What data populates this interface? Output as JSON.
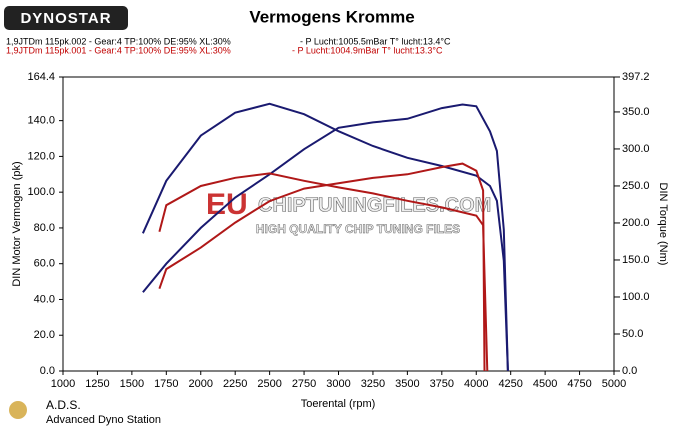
{
  "logo": "DYNOSTAR",
  "footer": {
    "name": "A.D.S.",
    "subtitle": "Advanced Dyno Station"
  },
  "watermark": {
    "brand": "EU",
    "site": "CHIPTUNINGFILES.COM",
    "tagline": "HIGH QUALITY CHIP TUNING FILES"
  },
  "runs": [
    {
      "label": "1,9JTDm 115pk.002 - Gear:4 TP:100% DE:95% XL:30%",
      "conditions": "- P Lucht:1005.5mBar T° lucht:13.4°C",
      "color": "#000000"
    },
    {
      "label": "1,9JTDm 115pk.001 - Gear:4 TP:100% DE:95% XL:30%",
      "conditions": "- P Lucht:1004.9mBar T° lucht:13.3°C",
      "color": "#c00000"
    }
  ],
  "chart_data": {
    "type": "line",
    "title": "Vermogens Kromme",
    "x_label": "Toerental (rpm)",
    "y_label": "DIN Motor Vermogen (pk)",
    "y2_label": "DIN Torque (Nm)",
    "xlim": [
      1000,
      5000
    ],
    "xticks": [
      1000,
      1250,
      1500,
      1750,
      2000,
      2250,
      2500,
      2750,
      3000,
      3250,
      3500,
      3750,
      4000,
      4250,
      4500,
      4750,
      5000
    ],
    "ylim": [
      0,
      164.4
    ],
    "yticks": [
      {
        "value": 0,
        "label": "0.0"
      },
      {
        "value": 20,
        "label": "20.0"
      },
      {
        "value": 40,
        "label": "40.0"
      },
      {
        "value": 60,
        "label": "60.0"
      },
      {
        "value": 80,
        "label": "80.0"
      },
      {
        "value": 100,
        "label": "100.0"
      },
      {
        "value": 120,
        "label": "120.0"
      },
      {
        "value": 140,
        "label": "140.0"
      },
      164.4
    ],
    "y2lim": [
      0,
      397.2
    ],
    "y2ticks": [
      {
        "value": 0,
        "label": "0.0"
      },
      {
        "value": 50,
        "label": "50.0"
      },
      {
        "value": 100,
        "label": "100.0"
      },
      {
        "value": 150,
        "label": "150.0"
      },
      {
        "value": 200,
        "label": "200.0"
      },
      {
        "value": 250,
        "label": "250.0"
      },
      {
        "value": 300,
        "label": "300.0"
      },
      {
        "value": 350,
        "label": "350.0"
      },
      397.2
    ],
    "series": [
      {
        "color": "#1a1a70",
        "x": [
          1580,
          1750,
          2000,
          2250,
          2500,
          2750,
          3000,
          3250,
          3500,
          3750,
          3900,
          4000,
          4100,
          4150,
          4200,
          4230
        ],
        "values": [
          44,
          60,
          80,
          97,
          110,
          124,
          136,
          139,
          141,
          147,
          149,
          148,
          134,
          123,
          79,
          0
        ]
      },
      {
        "color": "#1a1a70",
        "axis": "y2",
        "x": [
          1580,
          1750,
          2000,
          2250,
          2500,
          2750,
          3000,
          3250,
          3500,
          3750,
          4000,
          4100,
          4150,
          4200,
          4230
        ],
        "values": [
          186,
          257,
          318,
          349,
          361,
          347,
          324,
          304,
          288,
          277,
          264,
          250,
          230,
          149,
          0
        ]
      },
      {
        "color": "#b01818",
        "x": [
          1700,
          1750,
          2000,
          2250,
          2500,
          2750,
          3000,
          3250,
          3500,
          3750,
          3900,
          4000,
          4050,
          4060
        ],
        "values": [
          46,
          57,
          69,
          83,
          95,
          102,
          105,
          108,
          110,
          114,
          116,
          112,
          101,
          0
        ]
      },
      {
        "color": "#b01818",
        "axis": "y2",
        "x": [
          1700,
          1750,
          2000,
          2250,
          2500,
          2750,
          3000,
          3250,
          3500,
          3750,
          4000,
          4050,
          4080
        ],
        "values": [
          188,
          224,
          250,
          261,
          267,
          257,
          248,
          240,
          230,
          221,
          210,
          197,
          0
        ]
      }
    ]
  }
}
